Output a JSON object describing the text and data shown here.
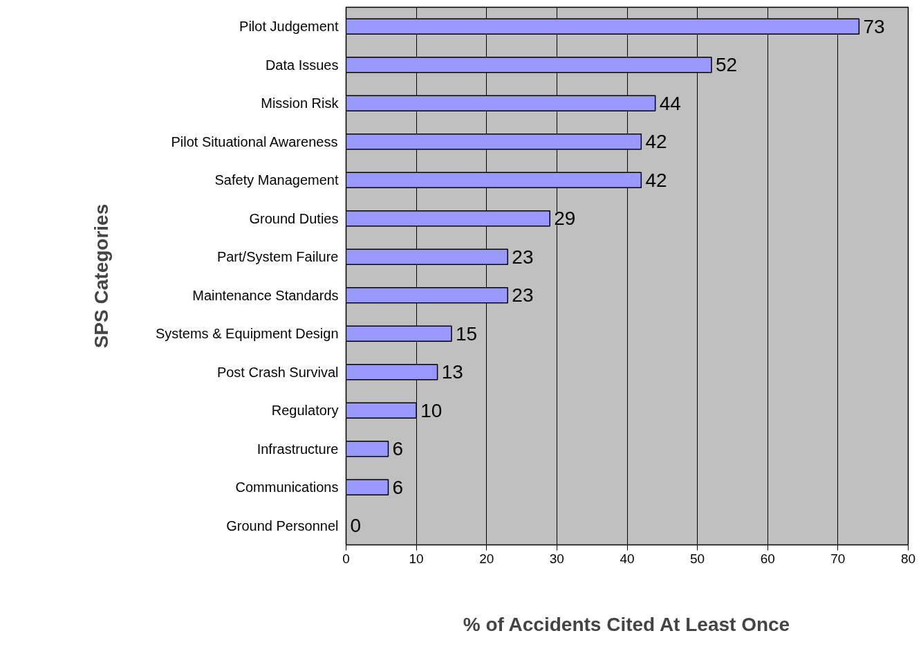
{
  "chart_data": {
    "type": "bar",
    "orientation": "horizontal",
    "xlabel": "% of Accidents Cited At Least Once",
    "ylabel": "SPS Categories",
    "categories": [
      "Pilot Judgement",
      "Data Issues",
      "Mission Risk",
      "Pilot Situational Awareness",
      "Safety Management",
      "Ground Duties",
      "Part/System Failure",
      "Maintenance Standards",
      "Systems & Equipment Design",
      "Post Crash Survival",
      "Regulatory",
      "Infrastructure",
      "Communications",
      "Ground Personnel"
    ],
    "values": [
      73,
      52,
      44,
      42,
      42,
      29,
      23,
      23,
      15,
      13,
      10,
      6,
      6,
      0
    ],
    "color": "#9999ff",
    "xlim": [
      0,
      80
    ],
    "xticks": [
      0,
      10,
      20,
      30,
      40,
      50,
      60,
      70,
      80
    ],
    "grid": "x",
    "data_labels": true
  }
}
